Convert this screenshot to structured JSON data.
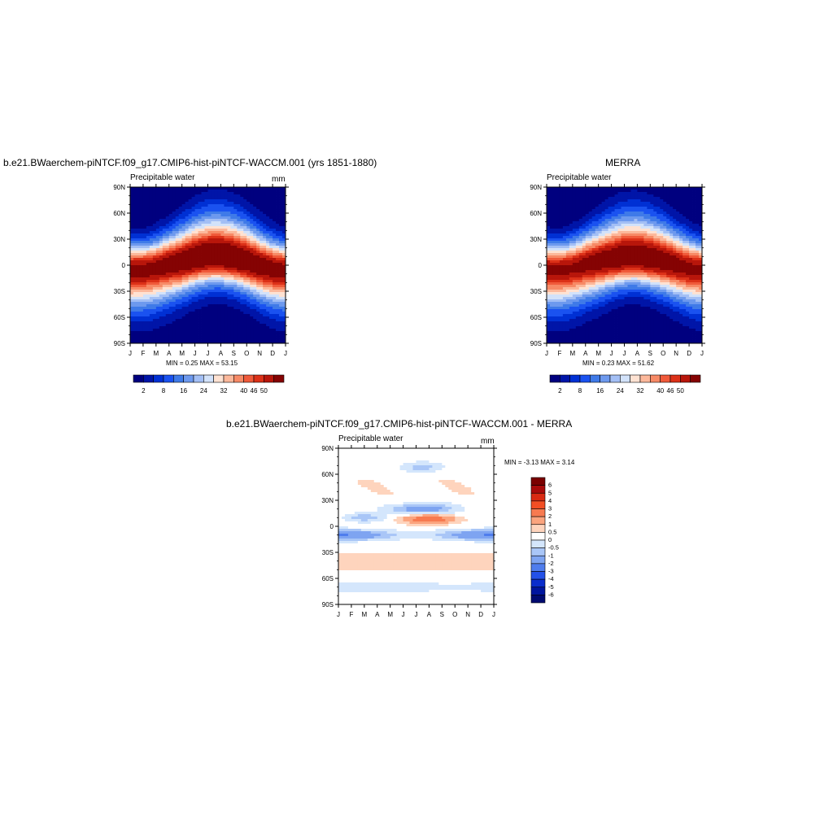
{
  "panels": [
    {
      "id": "model",
      "title": "b.e21.BWaerchem-piNTCF.f09_g17.CMIP6-hist-piNTCF-WACCM.001 (yrs 1851-1880)",
      "left_string": "Precipitable water",
      "right_string": "mm",
      "stats": "MIN =   0.25 MAX =  53.15",
      "lat_labels": [
        "90N",
        "60N",
        "30N",
        "0",
        "30S",
        "60S",
        "90S"
      ],
      "month_labels": [
        "J",
        "F",
        "M",
        "A",
        "M",
        "J",
        "J",
        "A",
        "S",
        "O",
        "N",
        "D",
        "J"
      ],
      "colorbar_labels": [
        "2",
        "8",
        "16",
        "24",
        "32",
        "40",
        "46",
        "50"
      ]
    },
    {
      "id": "obs",
      "title": "MERRA",
      "left_string": "Precipitable water",
      "right_string": "",
      "stats": "MIN =   0.23 MAX =  51.62",
      "lat_labels": [
        "90N",
        "60N",
        "30N",
        "0",
        "30S",
        "60S",
        "90S"
      ],
      "month_labels": [
        "J",
        "F",
        "M",
        "A",
        "M",
        "J",
        "J",
        "A",
        "S",
        "O",
        "N",
        "D",
        "J"
      ],
      "colorbar_labels": [
        "2",
        "8",
        "16",
        "24",
        "32",
        "40",
        "46",
        "50"
      ]
    },
    {
      "id": "diff",
      "title": "b.e21.BWaerchem-piNTCF.f09_g17.CMIP6-hist-piNTCF-WACCM.001 - MERRA",
      "left_string": "Precipitable water",
      "right_string": "mm",
      "stats": "MIN =  -3.13 MAX =   3.14",
      "lat_labels": [
        "90N",
        "60N",
        "30N",
        "0",
        "30S",
        "60S",
        "90S"
      ],
      "month_labels": [
        "J",
        "F",
        "M",
        "A",
        "M",
        "J",
        "J",
        "A",
        "S",
        "O",
        "N",
        "D",
        "J"
      ],
      "colorbar_labels": [
        "6",
        "5",
        "4",
        "3",
        "2",
        "1",
        "0.5",
        "0",
        "-0.5",
        "-1",
        "-2",
        "-3",
        "-4",
        "-5",
        "-6"
      ]
    }
  ],
  "colors": {
    "abs_scale": [
      "#00007f",
      "#0015a8",
      "#0030d4",
      "#1a52f0",
      "#3f7ae8",
      "#6d99ee",
      "#a3bff5",
      "#d2e2fa",
      "#ffe2d2",
      "#fcb89b",
      "#f78a66",
      "#f05a3a",
      "#dc3118",
      "#b8160b",
      "#850303"
    ],
    "diff_scale": [
      "#7a0000",
      "#a80a0a",
      "#d92a12",
      "#f24e24",
      "#f77a50",
      "#fba47e",
      "#fed4bd",
      "#ffffff",
      "#d4e6fc",
      "#a9c6f7",
      "#7ea4f1",
      "#4f7ded",
      "#2451e8",
      "#0a2dcc",
      "#00159e",
      "#000a70"
    ]
  },
  "chart_data": [
    {
      "type": "heatmap",
      "title": "b.e21.BWaerchem-piNTCF.f09_g17.CMIP6-hist-piNTCF-WACCM.001 (yrs 1851-1880)",
      "ylabel": "",
      "x": [
        "J",
        "F",
        "M",
        "A",
        "M",
        "J",
        "J",
        "A",
        "S",
        "O",
        "N",
        "D",
        "J"
      ],
      "y": [
        90,
        60,
        30,
        0,
        -30,
        -60,
        -90
      ],
      "ylim": [
        -90,
        90
      ],
      "min": 0.25,
      "max": 53.15,
      "levels": [
        2,
        8,
        16,
        24,
        32,
        40,
        46,
        50
      ],
      "itcz_lat": [
        -4,
        -3,
        -1,
        2,
        4,
        7,
        9,
        9,
        7,
        4,
        0,
        -3,
        -4
      ],
      "peak_value": 53.15
    },
    {
      "type": "heatmap",
      "title": "MERRA",
      "x": [
        "J",
        "F",
        "M",
        "A",
        "M",
        "J",
        "J",
        "A",
        "S",
        "O",
        "N",
        "D",
        "J"
      ],
      "y": [
        90,
        60,
        30,
        0,
        -30,
        -60,
        -90
      ],
      "ylim": [
        -90,
        90
      ],
      "min": 0.23,
      "max": 51.62,
      "levels": [
        2,
        8,
        16,
        24,
        32,
        40,
        46,
        50
      ],
      "itcz_lat": [
        -3,
        -3,
        -1,
        2,
        4,
        6,
        8,
        8,
        6,
        4,
        1,
        -2,
        -3
      ],
      "peak_value": 51.62
    },
    {
      "type": "heatmap",
      "title": "b.e21.BWaerchem-piNTCF.f09_g17.CMIP6-hist-piNTCF-WACCM.001 - MERRA",
      "x": [
        "J",
        "F",
        "M",
        "A",
        "M",
        "J",
        "J",
        "A",
        "S",
        "O",
        "N",
        "D",
        "J"
      ],
      "y": [
        90,
        60,
        30,
        0,
        -30,
        -60,
        -90
      ],
      "ylim": [
        -90,
        90
      ],
      "min": -3.13,
      "max": 3.14,
      "levels": [
        -6,
        -5,
        -4,
        -3,
        -2,
        -1,
        -0.5,
        0,
        0.5,
        1,
        2,
        3,
        4,
        5,
        6
      ]
    }
  ]
}
